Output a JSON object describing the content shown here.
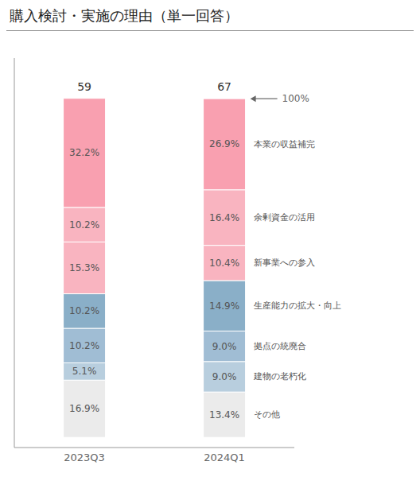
{
  "chart_data": {
    "type": "bar",
    "title": "購入検討・実施の理由（単一回答）",
    "stacked": true,
    "data_labels": true,
    "tick_labels": "x",
    "categories": [
      "2023Q3",
      "2024Q1"
    ],
    "ylim": [
      -3,
      112
    ],
    "series": [
      {
        "name": "その他",
        "color": "#ebebeb",
        "values": [
          16.9,
          13.4
        ],
        "value_labels": [
          "16.9%",
          "13.4%"
        ]
      },
      {
        "name": "建物の老朽化",
        "color": "#b8cede",
        "values": [
          5.1,
          9.0
        ],
        "value_labels": [
          "5.1%",
          "9.0%"
        ]
      },
      {
        "name": "拠点の統廃合",
        "color": "#a0bdd4",
        "values": [
          10.2,
          9.0
        ],
        "value_labels": [
          "10.2%",
          "9.0%"
        ]
      },
      {
        "name": "生産能力の拡大・向上",
        "color": "#8aafc8",
        "values": [
          10.2,
          14.9
        ],
        "value_labels": [
          "10.2%",
          "14.9%"
        ]
      },
      {
        "name": "新事業への参入",
        "color": "#f9b4c0",
        "values": [
          15.3,
          10.4
        ],
        "value_labels": [
          "15.3%",
          "10.4%"
        ]
      },
      {
        "name": "余剰資金の活用",
        "color": "#f9b4c0",
        "values": [
          10.2,
          16.4
        ],
        "value_labels": [
          "10.2%",
          "16.4%"
        ]
      },
      {
        "name": "本業の収益補完",
        "color": "#f9a0b0",
        "values": [
          32.2,
          26.9
        ],
        "value_labels": [
          "32.2%",
          "26.9%"
        ]
      }
    ],
    "annotations": [
      {
        "category": "2023Q3",
        "text": "59"
      },
      {
        "category": "2024Q1",
        "text": "67"
      },
      {
        "text": "100%"
      }
    ]
  }
}
